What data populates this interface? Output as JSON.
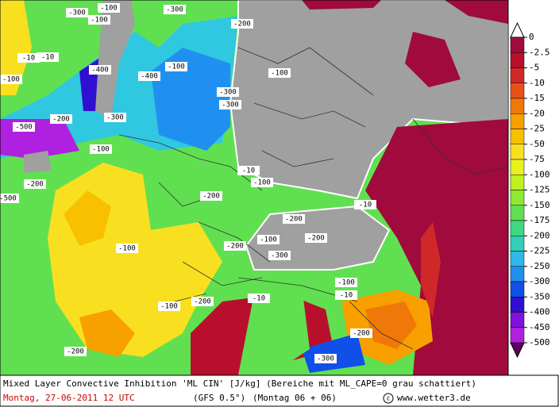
{
  "legend": {
    "ticks": [
      0,
      -2.5,
      -5,
      -10,
      -15,
      -20,
      -25,
      -50,
      -75,
      -100,
      -125,
      -150,
      -175,
      -200,
      -225,
      -250,
      -300,
      -350,
      -400,
      -450,
      -500
    ],
    "colors": [
      "#a00a3c",
      "#b8102c",
      "#d02828",
      "#e85018",
      "#f07808",
      "#f8a000",
      "#f8c000",
      "#f8e020",
      "#e8f020",
      "#c0f020",
      "#90e830",
      "#60e050",
      "#40d880",
      "#30d0b8",
      "#30b8e8",
      "#2090f0",
      "#1050e8",
      "#3010d0",
      "#8010e0",
      "#b020e0"
    ]
  },
  "contour_labels": [
    -300,
    -100,
    -10,
    -400,
    -100,
    -300,
    -500,
    -200,
    -100,
    -400,
    -300,
    -100,
    -300,
    -200,
    -100,
    -10,
    -100,
    -200,
    -100,
    -300,
    -10,
    -200,
    -200,
    -100,
    -100,
    -200,
    -10,
    -10,
    -200,
    -100,
    -300,
    -200,
    -10,
    -200,
    -300,
    -100,
    -500,
    -200
  ],
  "footer": {
    "title": "Mixed Layer Convective Inhibition 'ML CIN' [J/kg] (Bereiche mit ML_CAPE=0 grau schattiert)",
    "date": "Montag, 27-06-2011  12 UTC",
    "model": "(GFS 0.5°)",
    "run": "(Montag 06 + 06)",
    "credit": "www.wetter3.de"
  }
}
